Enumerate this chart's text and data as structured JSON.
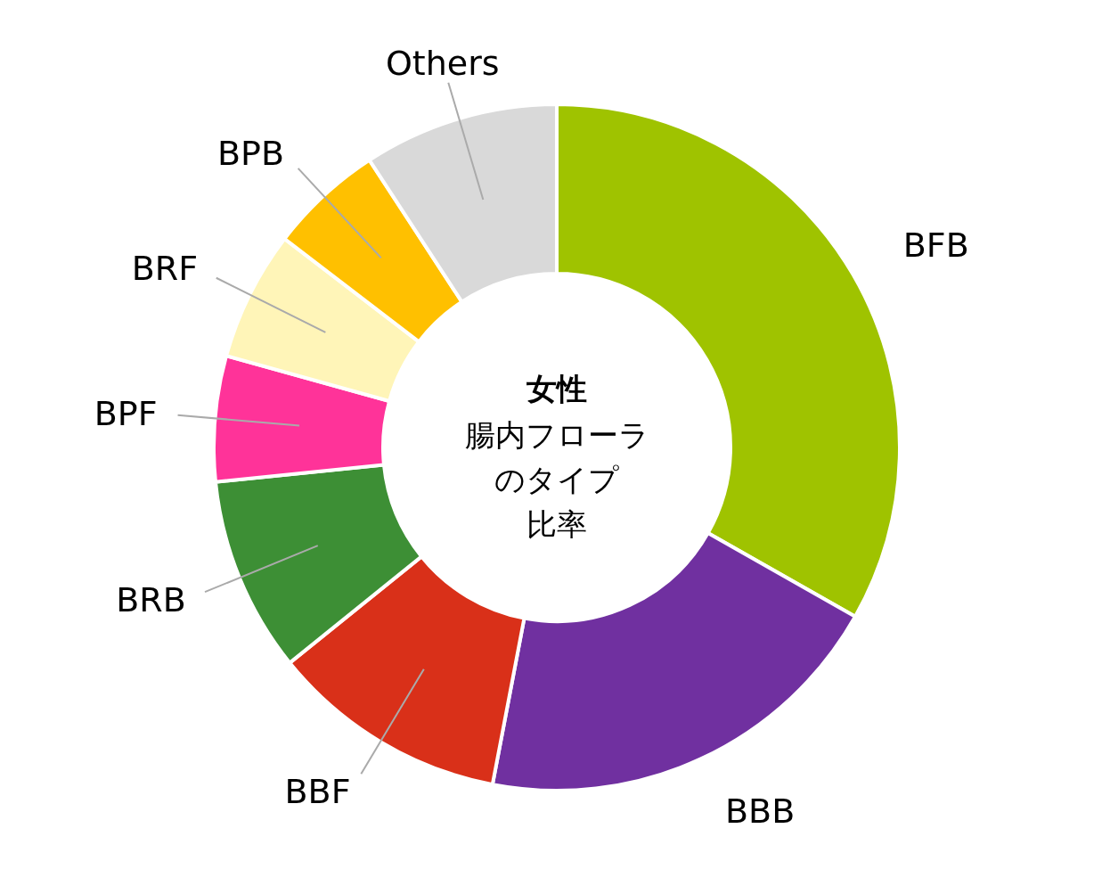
{
  "chart_data": {
    "type": "donut",
    "title": "女性",
    "annotations": [
      "腸内フローラ",
      "のタイプ",
      "比率"
    ],
    "categories": [
      "BFB",
      "BBB",
      "BBF",
      "BRB",
      "BPF",
      "BRF",
      "BPB",
      "Others"
    ],
    "values": [
      33.2,
      19.8,
      11.2,
      9.2,
      5.9,
      6.1,
      5.4,
      9.2
    ],
    "colors": [
      "#9fc300",
      "#7030a0",
      "#d93019",
      "#3d8f35",
      "#ff3399",
      "#fff5b8",
      "#ffc000",
      "#d9d9d9"
    ],
    "legend": false
  }
}
